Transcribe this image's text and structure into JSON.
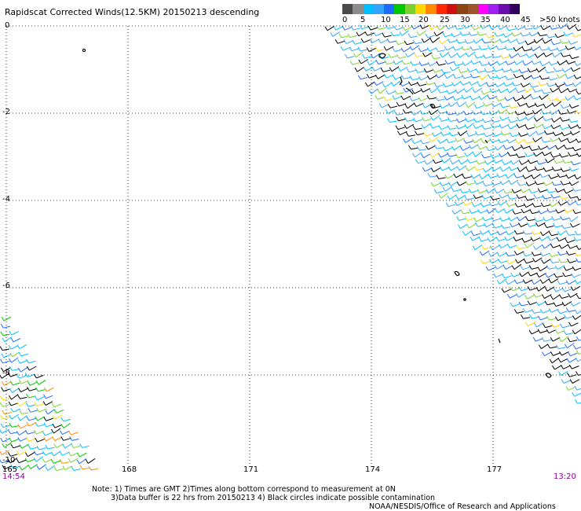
{
  "title": "Rapidscat Corrected Winds(12.5KM) 20150213 descending",
  "legend": {
    "labels": [
      "0",
      "5",
      "10",
      "15",
      "20",
      "25",
      "30",
      "35",
      "40",
      "45",
      ">50 knots"
    ],
    "colors": [
      "#4a4a4a",
      "#8c8c8c",
      "#00bfff",
      "#33a5ff",
      "#1e6bff",
      "#00c800",
      "#7cd22d",
      "#ffd700",
      "#ff8c00",
      "#ff2800",
      "#d01010",
      "#8b4513",
      "#a0522d",
      "#ff00ff",
      "#a020f0",
      "#6a0dad",
      "#300060"
    ]
  },
  "axes": {
    "x_labels": [
      "165",
      "168",
      "171",
      "174",
      "177"
    ],
    "y_labels": [
      "0",
      "-2",
      "-4",
      "-6",
      "-8",
      "-10"
    ],
    "grid": "dotted"
  },
  "times": {
    "left": "14:54",
    "right": "13:20"
  },
  "notes": {
    "line1": "Note: 1) Times are GMT 2)Times along bottom correspond to measurement at 0N",
    "line2": "3)Data buffer is 22 hrs from 20150213 4) Black circles indicate possible contamination",
    "credit": "NOAA/NESDIS/Office of Research and Applications"
  }
}
